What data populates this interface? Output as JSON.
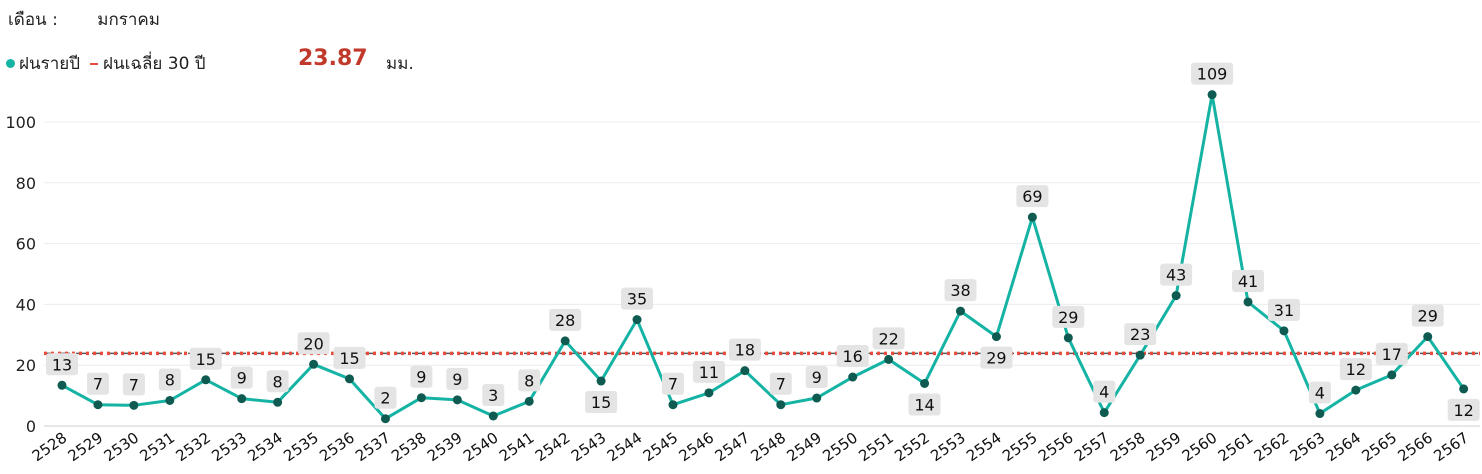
{
  "header": {
    "month_label": "เดือน :",
    "month_value": "มกราคม"
  },
  "legend": {
    "series_label": "ฝนรายปี",
    "average_label": "ฝนเฉลี่ย 30 ปี",
    "average_value": "23.87",
    "unit": "มม."
  },
  "colors": {
    "line": "#14b3a3",
    "marker": "#0f5b52",
    "average": "#e74c3c",
    "avg_value_text": "#c0392b"
  },
  "chart_data": {
    "type": "line",
    "x": [
      "2528",
      "2529",
      "2530",
      "2531",
      "2532",
      "2533",
      "2534",
      "2535",
      "2536",
      "2537",
      "2538",
      "2539",
      "2540",
      "2541",
      "2542",
      "2543",
      "2544",
      "2545",
      "2546",
      "2547",
      "2548",
      "2549",
      "2550",
      "2551",
      "2552",
      "2553",
      "2554",
      "2555",
      "2556",
      "2557",
      "2558",
      "2559",
      "2560",
      "2561",
      "2562",
      "2563",
      "2564",
      "2565",
      "2566",
      "2567"
    ],
    "series": [
      {
        "name": "ฝนรายปี",
        "values": [
          13.4,
          7,
          6.8,
          8.4,
          15.2,
          9,
          7.8,
          20.3,
          15.5,
          2.4,
          9.3,
          8.6,
          3.3,
          8.1,
          28,
          14.8,
          35,
          7,
          10.9,
          18.2,
          7,
          9.2,
          16.1,
          21.9,
          14,
          37.8,
          29.4,
          68.7,
          29,
          4.4,
          23.3,
          42.9,
          109,
          40.8,
          31.3,
          4.1,
          11.8,
          16.8,
          29.4,
          12.2
        ],
        "labels": [
          "13",
          "7",
          "7",
          "8",
          "15",
          "9",
          "8",
          "20",
          "15",
          "2",
          "9",
          "9",
          "3",
          "8",
          "28",
          "15",
          "35",
          "7",
          "11",
          "18",
          "7",
          "9",
          "16",
          "22",
          "14",
          "38",
          "29",
          "69",
          "29",
          "4",
          "23",
          "43",
          "109",
          "41",
          "31",
          "4",
          "12",
          "17",
          "29",
          "12"
        ]
      }
    ],
    "average": 23.87,
    "ylim": [
      0,
      112
    ],
    "yticks": [
      "0",
      "20",
      "40",
      "60",
      "80",
      "100"
    ],
    "grid": true,
    "legend_position": "top-left"
  }
}
